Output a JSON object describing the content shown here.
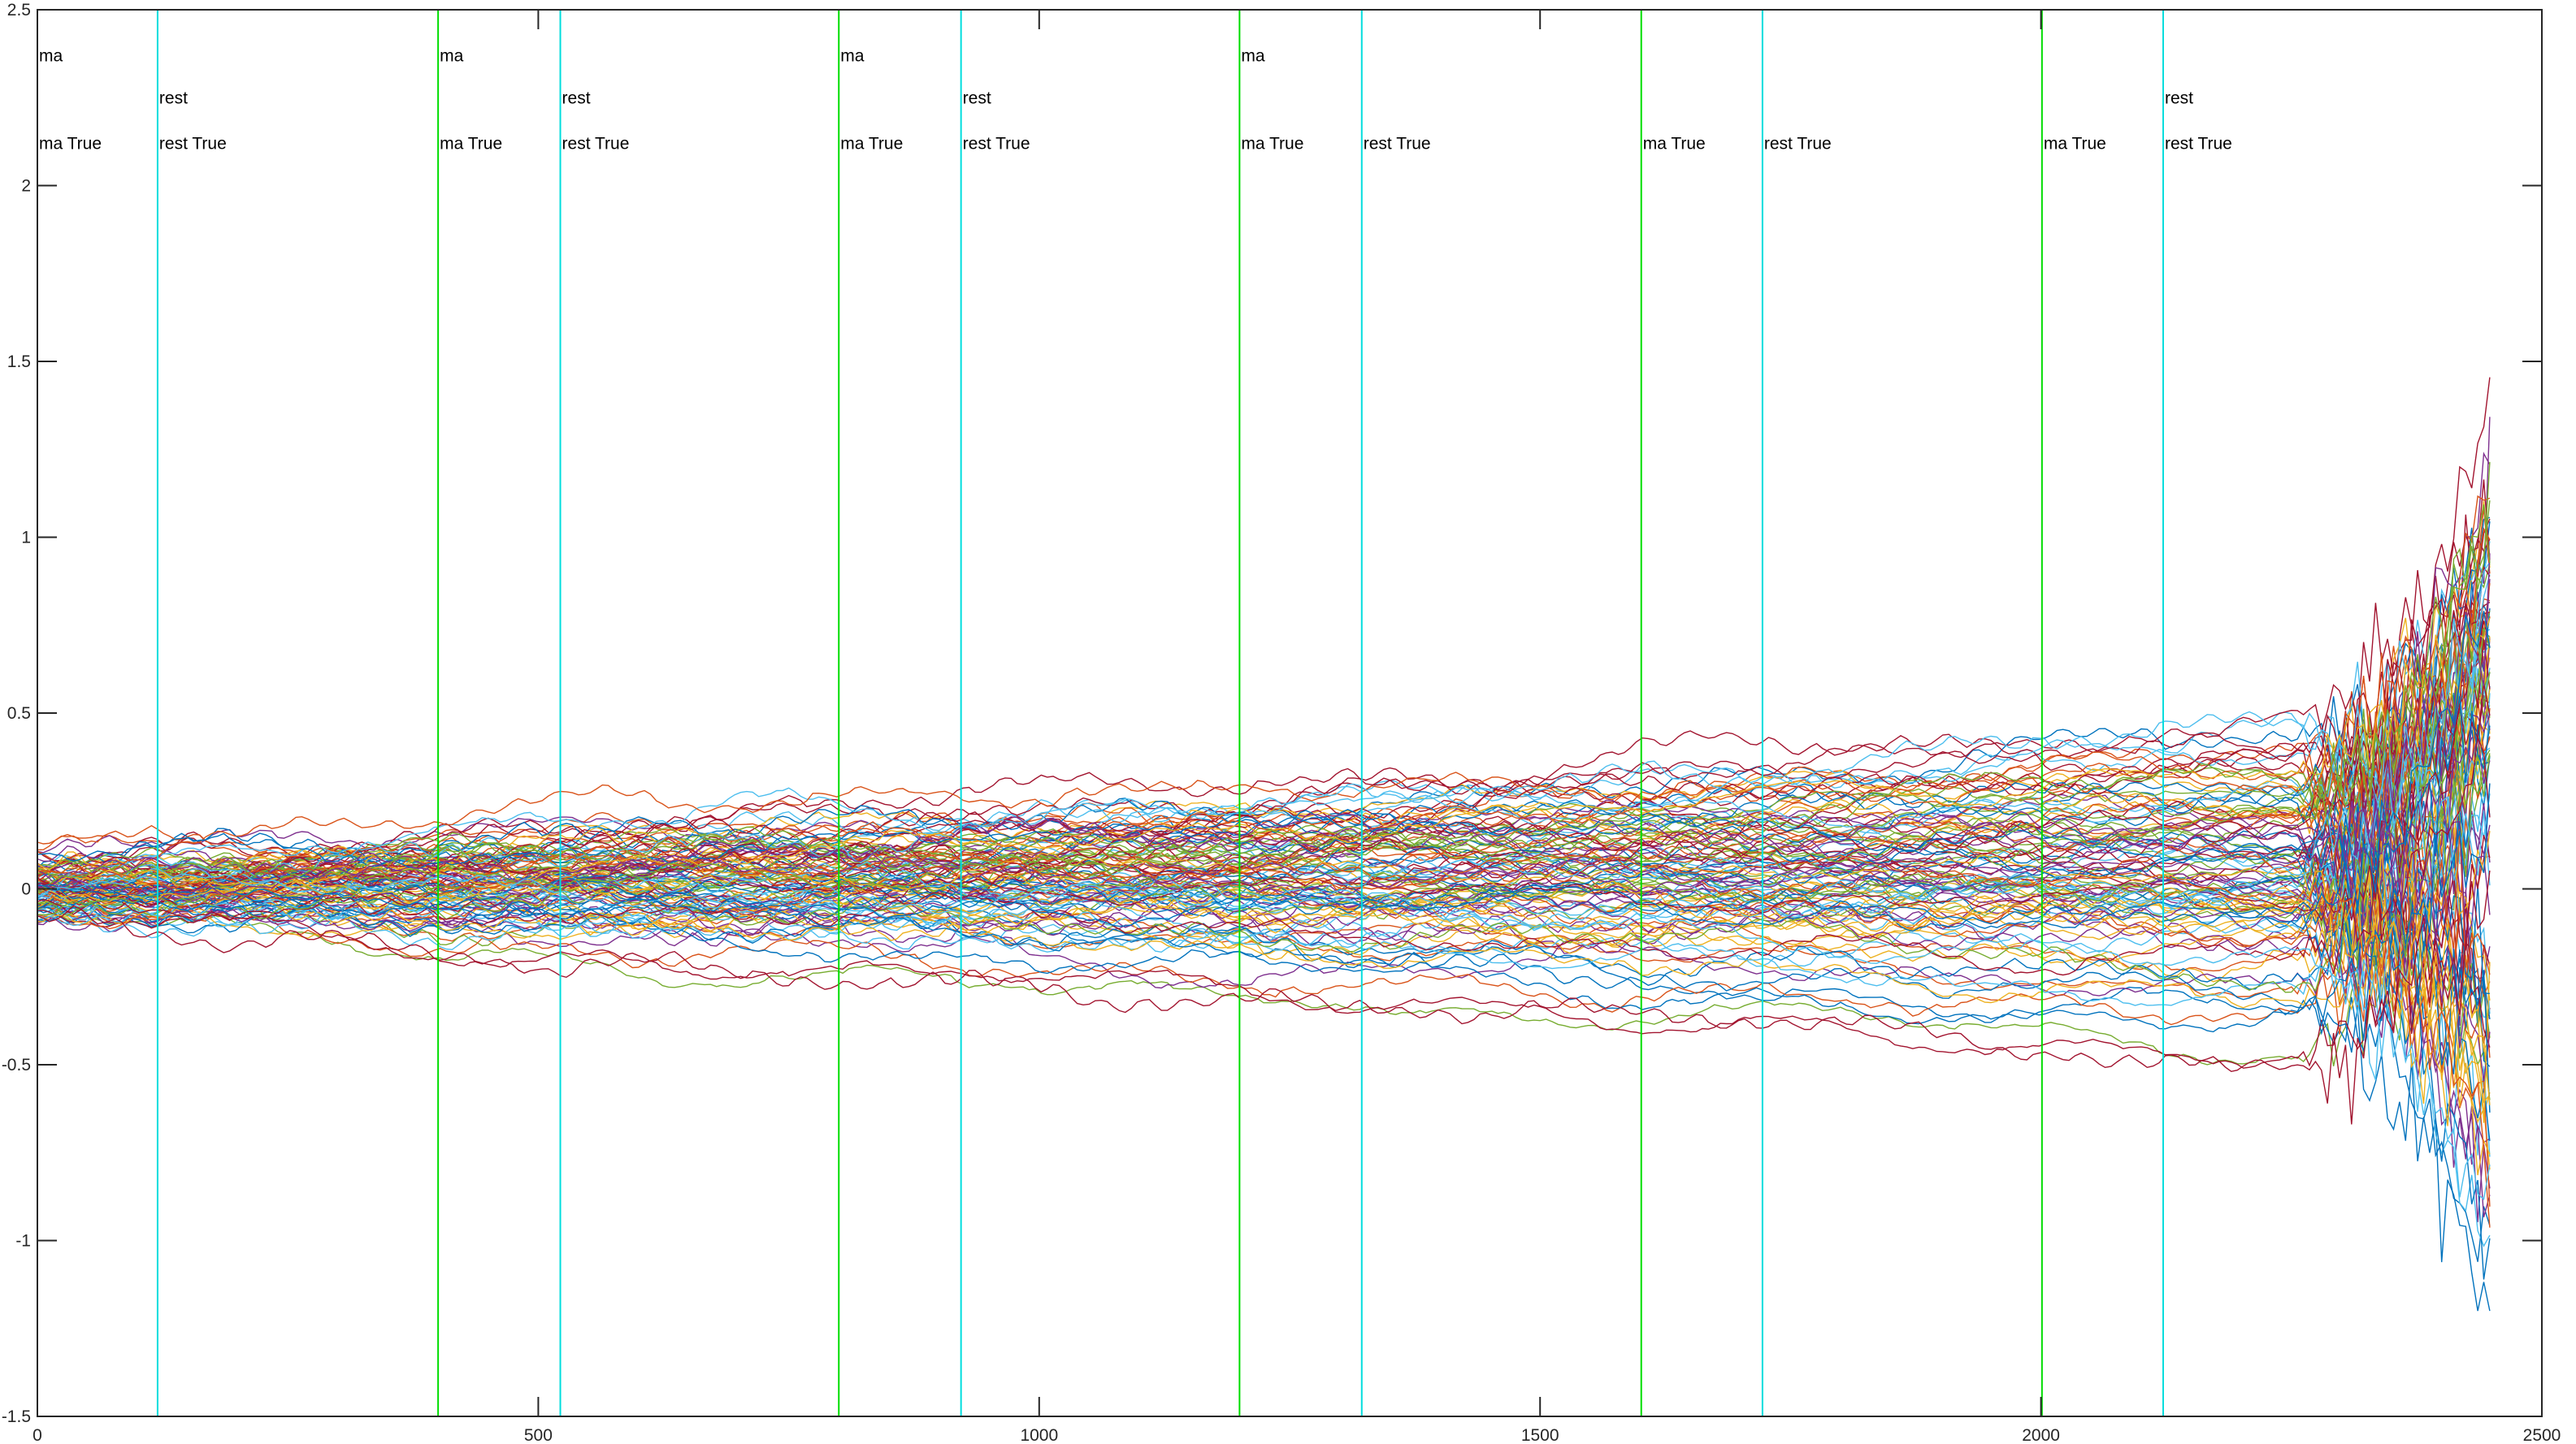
{
  "chart_data": {
    "type": "line",
    "title": "",
    "xlabel": "",
    "ylabel": "",
    "xlim": [
      0,
      2500
    ],
    "ylim": [
      -1.5,
      2.5
    ],
    "x_ticks": [
      0,
      500,
      1000,
      1500,
      2000,
      2500
    ],
    "x_tick_labels": [
      "0",
      "500",
      "1000",
      "1500",
      "2000",
      "2500"
    ],
    "y_ticks": [
      -1.5,
      -1,
      -0.5,
      0,
      0.5,
      1,
      1.5,
      2,
      2.5
    ],
    "y_tick_labels": [
      "-1.5",
      "-1",
      "-0.5",
      "0",
      "0.5",
      "1",
      "1.5",
      "2",
      "2.5"
    ],
    "grid": false,
    "legend": "none",
    "series_count": 120,
    "sample_count": 2451,
    "series_colors": [
      "#0072BD",
      "#D95319",
      "#EDB120",
      "#7E2F8E",
      "#77AC30",
      "#4DBEEE",
      "#A2142F"
    ],
    "event_lines": [
      {
        "x": 0,
        "color": "#00dd00",
        "labels": [
          "ma",
          "ma True"
        ]
      },
      {
        "x": 120,
        "color": "#00dddd",
        "labels": [
          "rest",
          "rest True"
        ]
      },
      {
        "x": 400,
        "color": "#00dd00",
        "labels": [
          "ma",
          "ma True"
        ]
      },
      {
        "x": 522,
        "color": "#00dddd",
        "labels": [
          "rest",
          "rest True"
        ]
      },
      {
        "x": 800,
        "color": "#00dd00",
        "labels": [
          "ma",
          "ma True"
        ]
      },
      {
        "x": 922,
        "color": "#00dddd",
        "labels": [
          "rest",
          "rest True"
        ]
      },
      {
        "x": 1200,
        "color": "#00dd00",
        "labels": [
          "ma",
          "ma True"
        ]
      },
      {
        "x": 1322,
        "color": "#00dddd",
        "labels": [
          "rest True"
        ]
      },
      {
        "x": 1601,
        "color": "#00dd00",
        "labels": [
          "ma True"
        ]
      },
      {
        "x": 1722,
        "color": "#00dddd",
        "labels": [
          "rest True"
        ]
      },
      {
        "x": 2001,
        "color": "#00dd00",
        "labels": [
          "ma True"
        ]
      },
      {
        "x": 2122,
        "color": "#00dddd",
        "labels": [
          "rest",
          "rest True"
        ]
      }
    ],
    "label_levels": {
      "ma": 2.37,
      "rest": 2.25,
      "ma True": 2.12,
      "rest True": 2.12
    }
  }
}
